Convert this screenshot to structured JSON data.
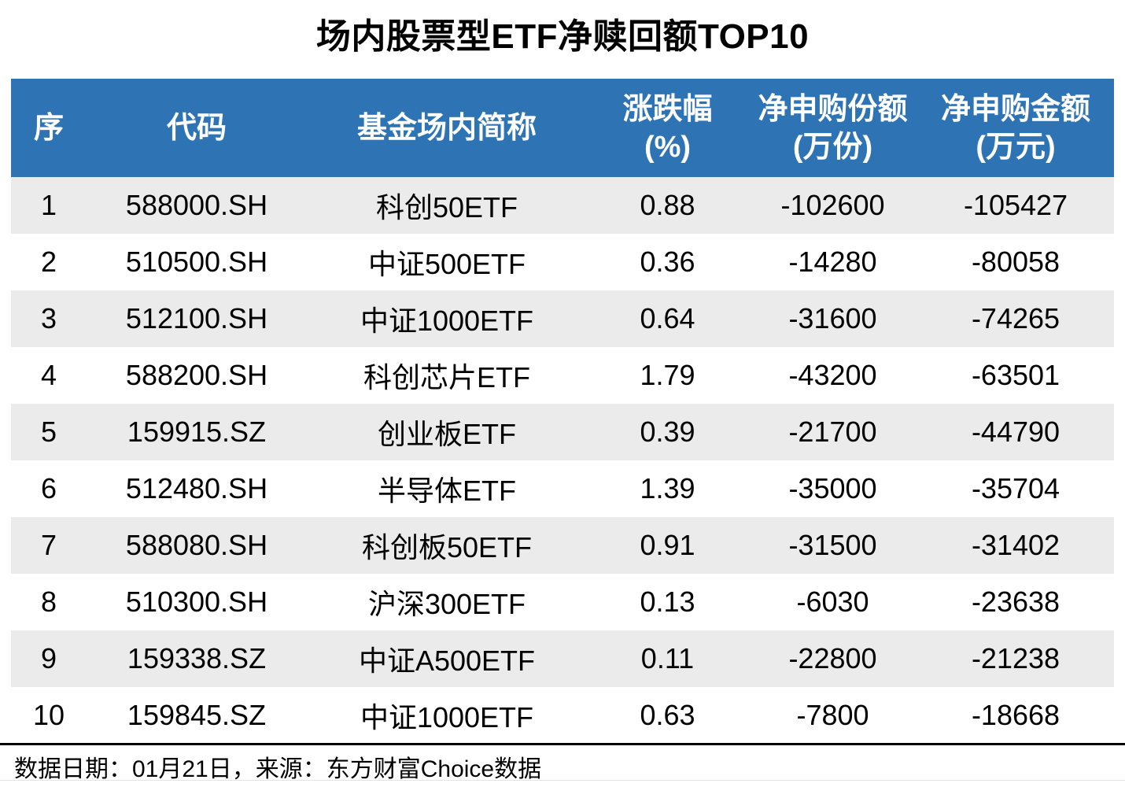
{
  "title": "场内股票型ETF净赎回额TOP10",
  "colors": {
    "header_bg": "#2E74B5",
    "header_text": "#FFFFFF",
    "row_alt_bg": "#EBEBEB",
    "text": "#000000",
    "divider": "#000000"
  },
  "table": {
    "columns": [
      {
        "label": "序",
        "sub": ""
      },
      {
        "label": "代码",
        "sub": ""
      },
      {
        "label": "基金场内简称",
        "sub": ""
      },
      {
        "label": "涨跌幅",
        "sub": "(%)"
      },
      {
        "label": "净申购份额",
        "sub": "(万份)"
      },
      {
        "label": "净申购金额",
        "sub": "(万元)"
      }
    ],
    "rows": [
      {
        "seq": "1",
        "code": "588000.SH",
        "name": "科创50ETF",
        "chg": "0.88",
        "net_shares": "-102600",
        "net_amount": "-105427"
      },
      {
        "seq": "2",
        "code": "510500.SH",
        "name": "中证500ETF",
        "chg": "0.36",
        "net_shares": "-14280",
        "net_amount": "-80058"
      },
      {
        "seq": "3",
        "code": "512100.SH",
        "name": "中证1000ETF",
        "chg": "0.64",
        "net_shares": "-31600",
        "net_amount": "-74265"
      },
      {
        "seq": "4",
        "code": "588200.SH",
        "name": "科创芯片ETF",
        "chg": "1.79",
        "net_shares": "-43200",
        "net_amount": "-63501"
      },
      {
        "seq": "5",
        "code": "159915.SZ",
        "name": "创业板ETF",
        "chg": "0.39",
        "net_shares": "-21700",
        "net_amount": "-44790"
      },
      {
        "seq": "6",
        "code": "512480.SH",
        "name": "半导体ETF",
        "chg": "1.39",
        "net_shares": "-35000",
        "net_amount": "-35704"
      },
      {
        "seq": "7",
        "code": "588080.SH",
        "name": "科创板50ETF",
        "chg": "0.91",
        "net_shares": "-31500",
        "net_amount": "-31402"
      },
      {
        "seq": "8",
        "code": "510300.SH",
        "name": "沪深300ETF",
        "chg": "0.13",
        "net_shares": "-6030",
        "net_amount": "-23638"
      },
      {
        "seq": "9",
        "code": "159338.SZ",
        "name": "中证A500ETF",
        "chg": "0.11",
        "net_shares": "-22800",
        "net_amount": "-21238"
      },
      {
        "seq": "10",
        "code": "159845.SZ",
        "name": "中证1000ETF",
        "chg": "0.63",
        "net_shares": "-7800",
        "net_amount": "-18668"
      }
    ]
  },
  "footer": {
    "note": "数据日期：01月21日，来源：东方财富Choice数据"
  },
  "chart_data": {
    "type": "table",
    "title": "场内股票型ETF净赎回额TOP10",
    "columns": [
      "序",
      "代码",
      "基金场内简称",
      "涨跌幅(%)",
      "净申购份额(万份)",
      "净申购金额(万元)"
    ],
    "rows": [
      [
        1,
        "588000.SH",
        "科创50ETF",
        0.88,
        -102600,
        -105427
      ],
      [
        2,
        "510500.SH",
        "中证500ETF",
        0.36,
        -14280,
        -80058
      ],
      [
        3,
        "512100.SH",
        "中证1000ETF",
        0.64,
        -31600,
        -74265
      ],
      [
        4,
        "588200.SH",
        "科创芯片ETF",
        1.79,
        -43200,
        -63501
      ],
      [
        5,
        "159915.SZ",
        "创业板ETF",
        0.39,
        -21700,
        -44790
      ],
      [
        6,
        "512480.SH",
        "半导体ETF",
        1.39,
        -35000,
        -35704
      ],
      [
        7,
        "588080.SH",
        "科创板50ETF",
        0.91,
        -31500,
        -31402
      ],
      [
        8,
        "510300.SH",
        "沪深300ETF",
        0.13,
        -6030,
        -23638
      ],
      [
        9,
        "159338.SZ",
        "中证A500ETF",
        0.11,
        -22800,
        -21238
      ],
      [
        10,
        "159845.SZ",
        "中证1000ETF",
        0.63,
        -7800,
        -18668
      ]
    ],
    "source_note": "数据日期：01月21日，来源：东方财富Choice数据"
  }
}
